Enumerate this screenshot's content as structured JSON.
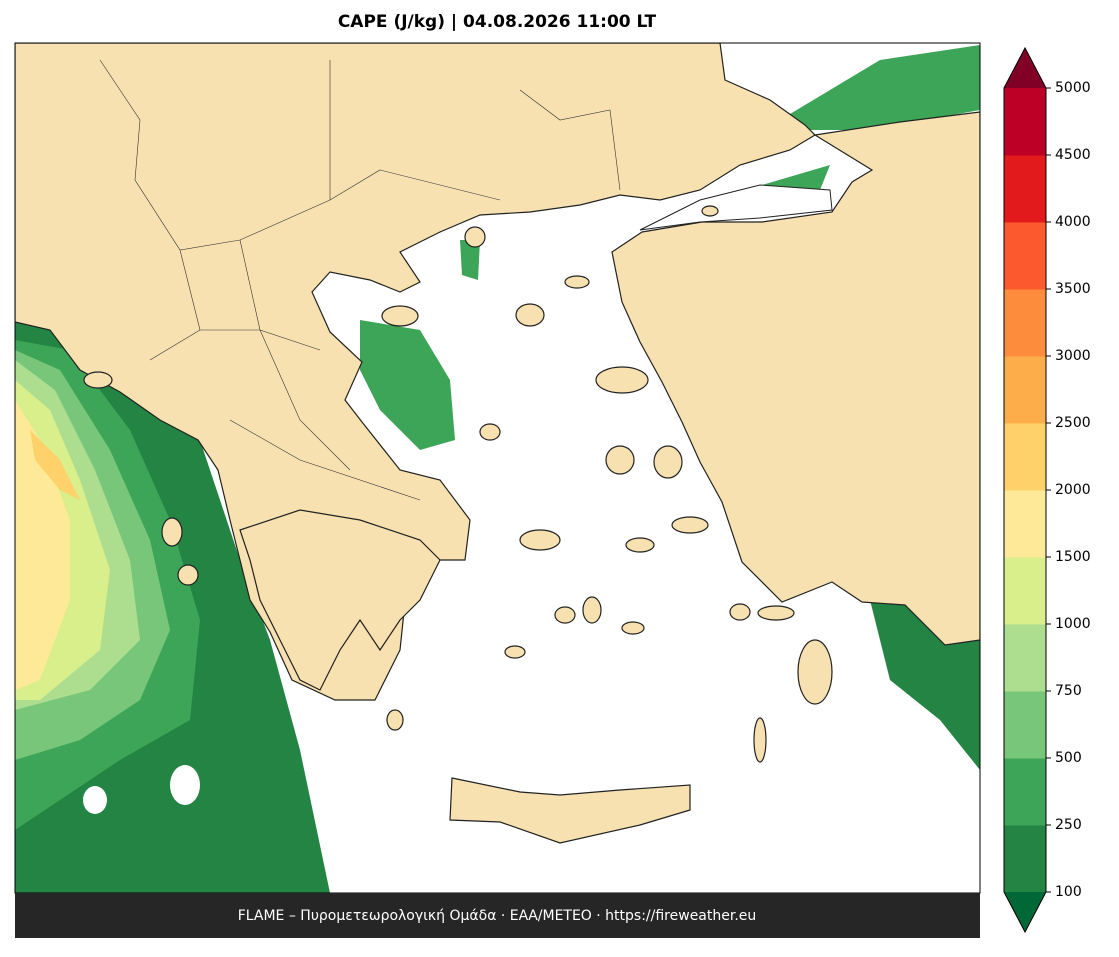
{
  "title": "CAPE (J/kg)  |  04.08.2026 11:00 LT",
  "footer": "FLAME – Πυρομετεωρολογική Ομάδα · ΕΑΑ/METEO · https://fireweather.eu",
  "colorbar": {
    "ticks": [
      100,
      250,
      500,
      750,
      1000,
      1500,
      2000,
      2500,
      3000,
      3500,
      4000,
      4500,
      5000
    ],
    "colors": [
      "#238443",
      "#3da557",
      "#78c679",
      "#addd8e",
      "#d9ef8b",
      "#fee999",
      "#fed16b",
      "#fdae4b",
      "#fd8d3c",
      "#fc5a2e",
      "#e31a1c",
      "#bd0026"
    ],
    "under_color": "#006837",
    "over_color": "#800026"
  }
}
